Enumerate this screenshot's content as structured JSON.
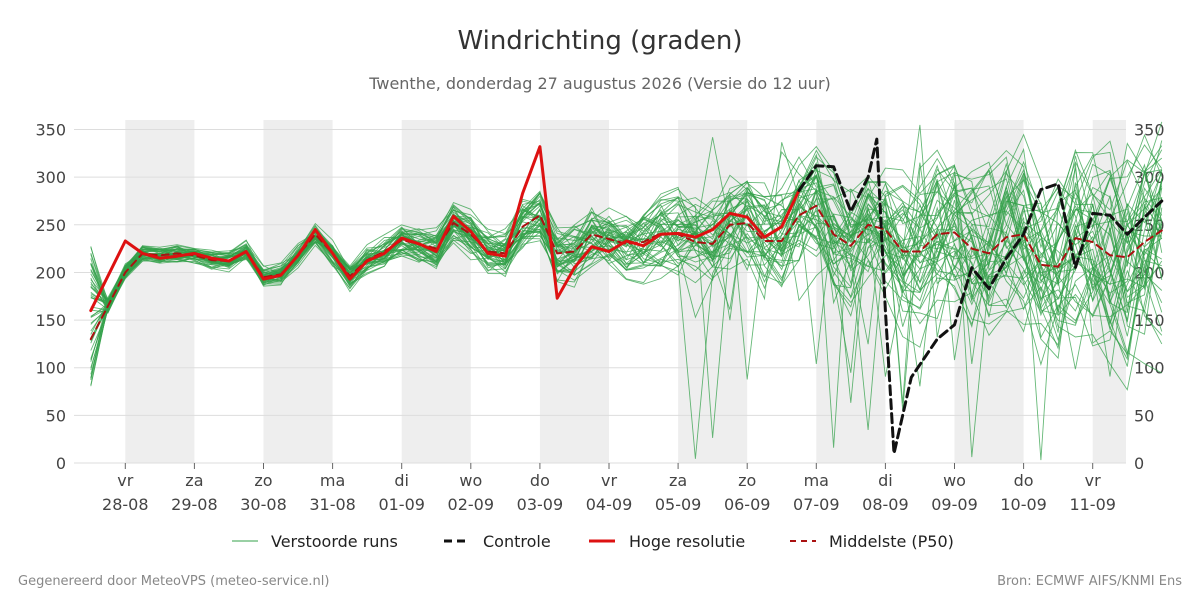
{
  "chart_data": {
    "type": "line",
    "title": "Windrichting (graden)",
    "subtitle": "Twenthe, donderdag 27 augustus 2026 (Versie do 12 uur)",
    "ylim": [
      0,
      360
    ],
    "yticks": [
      0,
      50,
      100,
      150,
      200,
      250,
      300,
      350
    ],
    "grid": true,
    "legend_position": "bottom",
    "x_days": [
      {
        "day": "vr",
        "date": "28-08"
      },
      {
        "day": "za",
        "date": "29-08"
      },
      {
        "day": "zo",
        "date": "30-08"
      },
      {
        "day": "ma",
        "date": "31-08"
      },
      {
        "day": "di",
        "date": "01-09"
      },
      {
        "day": "wo",
        "date": "02-09"
      },
      {
        "day": "do",
        "date": "03-09"
      },
      {
        "day": "vr",
        "date": "04-09"
      },
      {
        "day": "za",
        "date": "05-09"
      },
      {
        "day": "zo",
        "date": "06-09"
      },
      {
        "day": "ma",
        "date": "07-09"
      },
      {
        "day": "di",
        "date": "08-09"
      },
      {
        "day": "wo",
        "date": "09-09"
      },
      {
        "day": "do",
        "date": "10-09"
      },
      {
        "day": "vr",
        "date": "11-09"
      }
    ],
    "weekend_shading": [
      "28-08",
      "30-08",
      "01-09",
      "03-09",
      "05-09",
      "07-09",
      "09-09",
      "11-09"
    ],
    "ensemble_count": 50,
    "series": [
      {
        "name": "Hoge resolutie",
        "color": "#dd1111",
        "style": "solid",
        "points": [
          [
            "27-08 12:00",
            160
          ],
          [
            "28-08 00:00",
            233
          ],
          [
            "28-08 06:00",
            220
          ],
          [
            "28-08 12:00",
            215
          ],
          [
            "28-08 18:00",
            217
          ],
          [
            "29-08 00:00",
            220
          ],
          [
            "29-08 06:00",
            215
          ],
          [
            "29-08 12:00",
            212
          ],
          [
            "29-08 18:00",
            222
          ],
          [
            "30-08 00:00",
            193
          ],
          [
            "30-08 06:00",
            197
          ],
          [
            "30-08 12:00",
            218
          ],
          [
            "30-08 18:00",
            245
          ],
          [
            "31-08 00:00",
            220
          ],
          [
            "31-08 06:00",
            193
          ],
          [
            "31-08 12:00",
            212
          ],
          [
            "31-08 18:00",
            220
          ],
          [
            "01-09 00:00",
            236
          ],
          [
            "01-09 06:00",
            230
          ],
          [
            "01-09 12:00",
            222
          ],
          [
            "01-09 18:00",
            259
          ],
          [
            "02-09 00:00",
            243
          ],
          [
            "02-09 06:00",
            220
          ],
          [
            "02-09 12:00",
            217
          ],
          [
            "02-09 18:00",
            283
          ],
          [
            "03-09 00:00",
            332
          ],
          [
            "03-09 06:00",
            173
          ],
          [
            "03-09 12:00",
            205
          ],
          [
            "03-09 18:00",
            227
          ],
          [
            "04-09 00:00",
            222
          ],
          [
            "04-09 06:00",
            233
          ],
          [
            "04-09 12:00",
            228
          ],
          [
            "04-09 18:00",
            240
          ],
          [
            "05-09 00:00",
            241
          ],
          [
            "05-09 06:00",
            237
          ],
          [
            "05-09 12:00",
            245
          ],
          [
            "05-09 18:00",
            262
          ],
          [
            "06-09 00:00",
            258
          ],
          [
            "06-09 06:00",
            237
          ],
          [
            "06-09 12:00",
            248
          ],
          [
            "06-09 18:00",
            286
          ]
        ]
      },
      {
        "name": "Controle",
        "color": "#111111",
        "style": "dashed",
        "points": [
          [
            "06-09 18:00",
            286
          ],
          [
            "07-09 00:00",
            312
          ],
          [
            "07-09 06:00",
            311
          ],
          [
            "07-09 12:00",
            264
          ],
          [
            "07-09 18:00",
            300
          ],
          [
            "07-09 21:00",
            340
          ],
          [
            "08-09 00:00",
            160
          ],
          [
            "08-09 03:00",
            10
          ],
          [
            "08-09 09:00",
            90
          ],
          [
            "08-09 18:00",
            130
          ],
          [
            "09-09 00:00",
            145
          ],
          [
            "09-09 06:00",
            205
          ],
          [
            "09-09 12:00",
            183
          ],
          [
            "09-09 18:00",
            215
          ],
          [
            "10-09 00:00",
            240
          ],
          [
            "10-09 06:00",
            287
          ],
          [
            "10-09 12:00",
            293
          ],
          [
            "10-09 18:00",
            205
          ],
          [
            "11-09 00:00",
            262
          ],
          [
            "11-09 06:00",
            260
          ],
          [
            "11-09 12:00",
            240
          ],
          [
            "11-09 18:00",
            258
          ],
          [
            "12-09 00:00",
            275
          ]
        ]
      },
      {
        "name": "Middelste (P50)",
        "color": "#aa1111",
        "style": "dashed",
        "points": [
          [
            "27-08 12:00",
            130
          ],
          [
            "28-08 00:00",
            200
          ],
          [
            "28-08 06:00",
            220
          ],
          [
            "28-08 12:00",
            218
          ],
          [
            "28-08 18:00",
            220
          ],
          [
            "29-08 00:00",
            218
          ],
          [
            "29-08 06:00",
            213
          ],
          [
            "29-08 12:00",
            212
          ],
          [
            "29-08 18:00",
            222
          ],
          [
            "30-08 00:00",
            195
          ],
          [
            "30-08 06:00",
            198
          ],
          [
            "30-08 12:00",
            218
          ],
          [
            "30-08 18:00",
            240
          ],
          [
            "31-08 00:00",
            220
          ],
          [
            "31-08 06:00",
            196
          ],
          [
            "31-08 12:00",
            213
          ],
          [
            "31-08 18:00",
            222
          ],
          [
            "01-09 00:00",
            234
          ],
          [
            "01-09 06:00",
            230
          ],
          [
            "01-09 12:00",
            225
          ],
          [
            "01-09 18:00",
            252
          ],
          [
            "02-09 00:00",
            240
          ],
          [
            "02-09 06:00",
            222
          ],
          [
            "02-09 12:00",
            220
          ],
          [
            "02-09 18:00",
            248
          ],
          [
            "03-09 00:00",
            260
          ],
          [
            "03-09 06:00",
            220
          ],
          [
            "03-09 12:00",
            222
          ],
          [
            "03-09 18:00",
            240
          ],
          [
            "04-09 00:00",
            235
          ],
          [
            "04-09 06:00",
            230
          ],
          [
            "04-09 12:00",
            232
          ],
          [
            "04-09 18:00",
            241
          ],
          [
            "05-09 00:00",
            240
          ],
          [
            "05-09 06:00",
            232
          ],
          [
            "05-09 12:00",
            230
          ],
          [
            "05-09 18:00",
            250
          ],
          [
            "06-09 00:00",
            252
          ],
          [
            "06-09 06:00",
            233
          ],
          [
            "06-09 12:00",
            233
          ],
          [
            "06-09 18:00",
            260
          ],
          [
            "07-09 00:00",
            270
          ],
          [
            "07-09 06:00",
            240
          ],
          [
            "07-09 12:00",
            228
          ],
          [
            "07-09 18:00",
            250
          ],
          [
            "08-09 00:00",
            245
          ],
          [
            "08-09 06:00",
            222
          ],
          [
            "08-09 12:00",
            222
          ],
          [
            "08-09 18:00",
            240
          ],
          [
            "09-09 00:00",
            242
          ],
          [
            "09-09 06:00",
            225
          ],
          [
            "09-09 12:00",
            220
          ],
          [
            "09-09 18:00",
            237
          ],
          [
            "10-09 00:00",
            240
          ],
          [
            "10-09 06:00",
            208
          ],
          [
            "10-09 12:00",
            206
          ],
          [
            "10-09 18:00",
            236
          ],
          [
            "11-09 00:00",
            232
          ],
          [
            "11-09 06:00",
            218
          ],
          [
            "11-09 12:00",
            216
          ],
          [
            "11-09 18:00",
            232
          ],
          [
            "12-09 00:00",
            244
          ]
        ]
      },
      {
        "name": "Verstoorde runs",
        "color": "#33a04a",
        "style": "thin"
      }
    ]
  },
  "legend": {
    "perturbed": "Verstoorde runs",
    "control": "Controle",
    "hires": "Hoge resolutie",
    "median": "Middelste (P50)"
  },
  "footer": {
    "left": "Gegenereerd door MeteoVPS (meteo-service.nl)",
    "right": "Bron: ECMWF AIFS/KNMI Ens"
  },
  "colors": {
    "ensemble": "#33a04a",
    "hires": "#dd1111",
    "control": "#111111",
    "median": "#aa1111",
    "shade": "#eeeeee",
    "grid": "#dddddd"
  }
}
